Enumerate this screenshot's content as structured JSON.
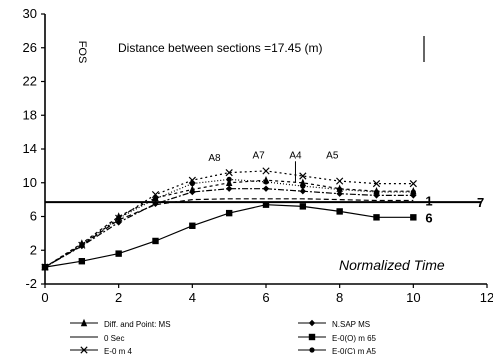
{
  "chart_data": {
    "type": "line",
    "ylabel": "FOS",
    "xlabel": "Normalized Time",
    "annotation": "Distance between sections =17.45 (m)",
    "xlim": [
      0,
      12
    ],
    "ylim": [
      -2,
      30
    ],
    "x_ticks": [
      "0",
      "2",
      "4",
      "6",
      "8",
      "10",
      "12"
    ],
    "y_ticks": [
      {
        "value": -2,
        "label": "-2"
      },
      {
        "value": 2,
        "label": "2"
      },
      {
        "value": 6,
        "label": "6"
      },
      {
        "value": 10,
        "label": "10"
      },
      {
        "value": 14,
        "label": "14"
      },
      {
        "value": 18,
        "label": "18"
      },
      {
        "value": 22,
        "label": "22"
      },
      {
        "value": 26,
        "label": "26"
      },
      {
        "value": 30,
        "label": "30"
      }
    ],
    "reference_line": {
      "y": 7.7,
      "label": "7"
    },
    "series": [
      {
        "label": "1",
        "marker": "none",
        "dash": "5,3",
        "x": [
          0,
          1,
          2,
          3,
          4,
          5,
          6,
          7,
          8,
          9,
          10
        ],
        "y": [
          0,
          2.6,
          5.6,
          7.4,
          8.0,
          8.1,
          8.1,
          8.1,
          8.0,
          7.9,
          7.9
        ]
      },
      {
        "label": "6",
        "marker": "square",
        "dash": "",
        "x": [
          0,
          1,
          2,
          3,
          4,
          5,
          6,
          7,
          8,
          9,
          10
        ],
        "y": [
          0,
          0.7,
          1.6,
          3.1,
          4.9,
          6.4,
          7.4,
          7.2,
          6.6,
          5.9,
          5.9
        ]
      },
      {
        "label": "A4",
        "marker": "triangle",
        "dash": "3,3",
        "x": [
          0,
          1,
          2,
          3,
          4,
          5,
          6,
          7,
          8,
          9,
          10
        ],
        "y": [
          0,
          2.8,
          6.0,
          8.2,
          9.2,
          10.0,
          10.3,
          10.0,
          9.3,
          9.0,
          9.0
        ]
      },
      {
        "label": "A5",
        "marker": "x",
        "dash": "2,3",
        "x": [
          0,
          1,
          2,
          3,
          4,
          5,
          6,
          7,
          8,
          9,
          10
        ],
        "y": [
          0,
          2.6,
          5.8,
          8.6,
          10.3,
          11.2,
          11.4,
          10.8,
          10.2,
          9.9,
          9.9
        ]
      },
      {
        "label": "A7",
        "marker": "diamond",
        "dash": "6,2,2,2",
        "x": [
          0,
          1,
          2,
          3,
          4,
          5,
          6,
          7,
          8,
          9,
          10
        ],
        "y": [
          0,
          2.5,
          5.3,
          7.5,
          8.9,
          9.3,
          9.3,
          9.0,
          8.7,
          8.5,
          8.5
        ]
      },
      {
        "label": "A8",
        "marker": "circle",
        "dash": "1,2",
        "x": [
          0,
          1,
          2,
          3,
          4,
          5,
          6,
          7,
          8,
          9,
          10
        ],
        "y": [
          0,
          2.7,
          5.8,
          8.1,
          9.9,
          10.4,
          10.1,
          9.6,
          9.2,
          8.9,
          8.9
        ]
      }
    ],
    "point_labels": [
      {
        "text": "A8",
        "x": 4.6,
        "y": 12.6
      },
      {
        "text": "A7",
        "x": 5.8,
        "y": 12.9
      },
      {
        "text": "A4",
        "x": 6.8,
        "y": 12.9
      },
      {
        "text": "A5",
        "x": 7.8,
        "y": 12.9
      }
    ],
    "legend": {
      "position": "bottom",
      "entries": [
        {
          "label": "Diff. and Point: MS",
          "marker": "triangle"
        },
        {
          "label": "N.SAP MS",
          "marker": "diamond"
        },
        {
          "label": "0 Sec",
          "marker": "none"
        },
        {
          "label": "E-0(O) m 65",
          "marker": "square"
        },
        {
          "label": "E-0 m 4",
          "marker": "x"
        },
        {
          "label": "E-0(C) m A5",
          "marker": "circle"
        }
      ]
    }
  }
}
